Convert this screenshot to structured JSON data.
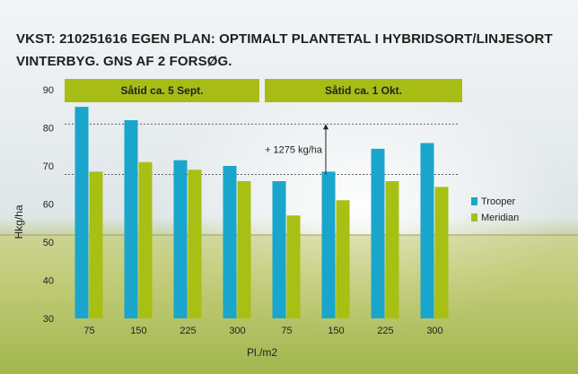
{
  "title_line1": "VKST: 210251616 EGEN PLAN: OPTIMALT PLANTETAL I HYBRIDSORT/LINJESORT",
  "title_line2": "VINTERBYG. GNS AF 2 FORSØG.",
  "colors": {
    "trooper": "#1aa6cc",
    "meridian": "#a8bf14",
    "header_band": "#a7bd16"
  },
  "chart_data": {
    "type": "bar",
    "groups": [
      {
        "label": "Såtid ca. 5 Sept.",
        "categories": [
          "75",
          "150",
          "225",
          "300"
        ]
      },
      {
        "label": "Såtid ca. 1 Okt.",
        "categories": [
          "75",
          "150",
          "225",
          "300"
        ]
      }
    ],
    "categories": [
      "75",
      "150",
      "225",
      "300",
      "75",
      "150",
      "225",
      "300"
    ],
    "series": [
      {
        "name": "Trooper",
        "values": [
          85.5,
          82.0,
          71.5,
          70.0,
          66.0,
          68.5,
          74.5,
          76.0
        ]
      },
      {
        "name": "Meridian",
        "values": [
          68.5,
          71.0,
          69.0,
          66.0,
          57.0,
          61.0,
          66.0,
          64.5
        ]
      }
    ],
    "xlabel": "Pl./m2",
    "ylabel": "Hkg/ha",
    "ylim": [
      30,
      90
    ],
    "yticks": [
      30,
      40,
      50,
      60,
      70,
      80,
      90
    ],
    "reference_lines": [
      81,
      67.8
    ],
    "annotation": "+ 1275 kg/ha",
    "legend_position": "right"
  }
}
